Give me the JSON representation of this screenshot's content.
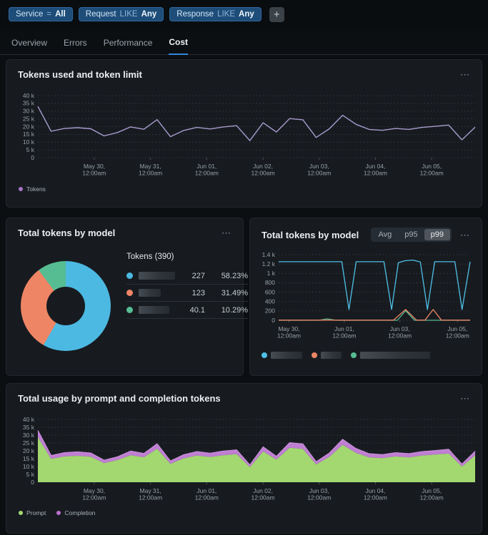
{
  "filters": {
    "chips": [
      {
        "field": "Service",
        "op": "=",
        "value": "All"
      },
      {
        "field": "Request",
        "op": "LIKE",
        "value": "Any"
      },
      {
        "field": "Response",
        "op": "LIKE",
        "value": "Any"
      }
    ],
    "add_button": "+"
  },
  "tabs": [
    {
      "label": "Overview",
      "active": false
    },
    {
      "label": "Errors",
      "active": false
    },
    {
      "label": "Performance",
      "active": false
    },
    {
      "label": "Cost",
      "active": true
    }
  ],
  "ui": {
    "more_icon": "⋯"
  },
  "panels": {
    "tokens": {
      "title": "Tokens used and token limit",
      "legend": [
        {
          "label": "Tokens",
          "color": "#a973c9"
        }
      ]
    },
    "by_model_donut": {
      "title": "Total tokens by model",
      "table_header": "Tokens (390)"
    },
    "by_model_percentile": {
      "title": "Total tokens by model",
      "toggles": [
        {
          "label": "Avg",
          "active": false
        },
        {
          "label": "p95",
          "active": false
        },
        {
          "label": "p99",
          "active": true
        }
      ]
    },
    "usage": {
      "title": "Total usage by prompt and completion tokens",
      "legend": [
        {
          "label": "Prompt",
          "color": "#a3d870"
        },
        {
          "label": "Completion",
          "color": "#bd6fce"
        }
      ]
    }
  },
  "chart_data": [
    {
      "type": "line",
      "title": "Tokens used and token limit",
      "ylim": [
        0,
        40000
      ],
      "yticks": [
        "40 k",
        "35 k",
        "30 k",
        "25 k",
        "20 k",
        "15 k",
        "10 k",
        "5 k",
        "0"
      ],
      "xticks": [
        [
          "May 30,",
          "12:00am"
        ],
        [
          "May 31,",
          "12:00am"
        ],
        [
          "Jun 01,",
          "12:00am"
        ],
        [
          "Jun 02,",
          "12:00am"
        ],
        [
          "Jun 03,",
          "12:00am"
        ],
        [
          "Jun 04,",
          "12:00am"
        ],
        [
          "Jun 05,",
          "12:00am"
        ]
      ],
      "grid": "dashed-horizontal",
      "legend_position": "bottom-left",
      "series": [
        {
          "name": "Tokens",
          "color": "#a89bce",
          "values_k": [
            33,
            17,
            18.8,
            19.3,
            18.6,
            14,
            16.2,
            19.8,
            18.3,
            24.5,
            13.5,
            17.5,
            19.5,
            18.5,
            19.8,
            20.6,
            11,
            22.5,
            16.5,
            25.2,
            24.4,
            13,
            18.6,
            27.3,
            21.5,
            18.2,
            17.6,
            18.8,
            18.2,
            19.5,
            20.2,
            21,
            11.5,
            19.7
          ]
        }
      ]
    },
    {
      "type": "pie",
      "title": "Total tokens by model",
      "donut": true,
      "header": "Tokens (390)",
      "total": 390,
      "slices": [
        {
          "value": 227,
          "percent": "58.23%",
          "color": "#4cb9e2"
        },
        {
          "value": 123,
          "percent": "31.49%",
          "color": "#ee8565"
        },
        {
          "value": "40.1",
          "percent": "10.29%",
          "color": "#56bd93"
        }
      ]
    },
    {
      "type": "line",
      "title": "Total tokens by model (p99)",
      "ylim": [
        0,
        1400
      ],
      "yticks": [
        "1.4 k",
        "1.2 k",
        "1 k",
        "800",
        "600",
        "400",
        "200",
        "0"
      ],
      "xticks": [
        [
          "May 30,",
          "12:00am"
        ],
        [
          "Jun 01,",
          "12:00am"
        ],
        [
          "Jun 03,",
          "12:00am"
        ],
        [
          "Jun 05,",
          "12:00am"
        ]
      ],
      "grid": "dashed-horizontal",
      "series": [
        {
          "color": "#56bd93",
          "points": [
            [
              0,
              0
            ],
            [
              0.21,
              0
            ],
            [
              0.253,
              30
            ],
            [
              0.3,
              0
            ],
            [
              0.62,
              0
            ],
            [
              0.663,
              205
            ],
            [
              0.71,
              0
            ],
            [
              1,
              0
            ]
          ]
        },
        {
          "color": "#ee8565",
          "points": [
            [
              0,
              3
            ],
            [
              0.6,
              3
            ],
            [
              0.663,
              230
            ],
            [
              0.72,
              3
            ],
            [
              0.764,
              3
            ],
            [
              0.807,
              230
            ],
            [
              0.85,
              3
            ],
            [
              1,
              3
            ]
          ]
        },
        {
          "color": "#4fc0e8",
          "points": [
            [
              0,
              1250
            ],
            [
              0.33,
              1250
            ],
            [
              0.367,
              230
            ],
            [
              0.405,
              1250
            ],
            [
              0.55,
              1250
            ],
            [
              0.59,
              230
            ],
            [
              0.625,
              1230
            ],
            [
              0.66,
              1270
            ],
            [
              0.7,
              1285
            ],
            [
              0.74,
              1245
            ],
            [
              0.777,
              230
            ],
            [
              0.815,
              1250
            ],
            [
              0.92,
              1250
            ],
            [
              0.958,
              230
            ],
            [
              1,
              1250
            ]
          ]
        }
      ]
    },
    {
      "type": "area",
      "stacked": true,
      "title": "Total usage by prompt and completion tokens",
      "ylim": [
        0,
        40000
      ],
      "yticks": [
        "40 k",
        "35 k",
        "30 k",
        "25 k",
        "20 k",
        "15 k",
        "10 k",
        "5 k",
        "0"
      ],
      "xticks": [
        [
          "May 30,",
          "12:00am"
        ],
        [
          "May 31,",
          "12:00am"
        ],
        [
          "Jun 01,",
          "12:00am"
        ],
        [
          "Jun 02,",
          "12:00am"
        ],
        [
          "Jun 03,",
          "12:00am"
        ],
        [
          "Jun 04,",
          "12:00am"
        ],
        [
          "Jun 05,",
          "12:00am"
        ]
      ],
      "series": [
        {
          "name": "Prompt",
          "color": "#a3d870",
          "values_k": [
            28.7,
            14.8,
            16.4,
            16.8,
            16.2,
            12.2,
            14.1,
            17.2,
            15.9,
            21.3,
            11.7,
            15.2,
            17,
            16.1,
            17.2,
            17.9,
            9.6,
            19.6,
            14.4,
            21.9,
            21.2,
            11.3,
            16.2,
            23.8,
            18.7,
            15.8,
            15.3,
            16.4,
            15.8,
            17,
            17.6,
            18.3,
            10,
            17.1
          ]
        },
        {
          "name": "Completion",
          "color": "#bf7ed2",
          "values_k": [
            4.3,
            2.2,
            2.4,
            2.5,
            2.4,
            1.8,
            2.1,
            2.6,
            2.4,
            3.2,
            1.8,
            2.3,
            2.5,
            2.4,
            2.6,
            2.7,
            1.4,
            2.9,
            2.1,
            3.3,
            3.2,
            1.7,
            2.4,
            3.5,
            2.8,
            2.4,
            2.3,
            2.4,
            2.4,
            2.5,
            2.6,
            2.7,
            1.5,
            2.6
          ]
        }
      ]
    }
  ]
}
